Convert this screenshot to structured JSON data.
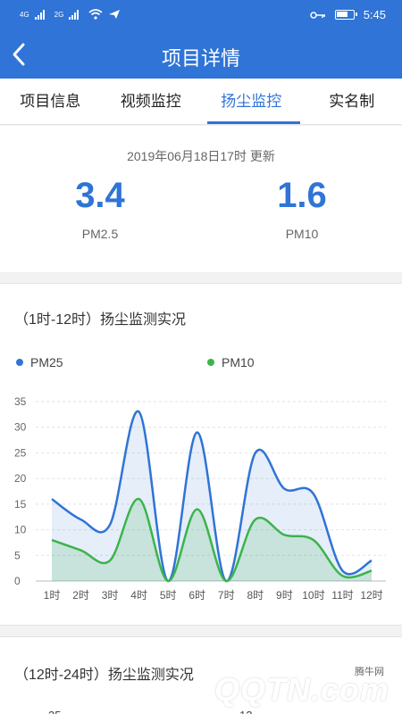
{
  "statusbar": {
    "left": [
      "4G",
      "2G"
    ],
    "time": "5:45"
  },
  "appbar": {
    "title": "项目详情"
  },
  "tabs": [
    {
      "label": "项目信息",
      "active": false
    },
    {
      "label": "视频监控",
      "active": false
    },
    {
      "label": "扬尘监控",
      "active": true
    },
    {
      "label": "实名制",
      "active": false
    }
  ],
  "summary": {
    "updated": "2019年06月18日17时 更新",
    "pm25_value": "3.4",
    "pm25_label": "PM2.5",
    "pm10_value": "1.6",
    "pm10_label": "PM10"
  },
  "chart1": {
    "title": "（1时-12时）扬尘监测实况",
    "legend_pm25": "PM25",
    "legend_pm10": "PM10"
  },
  "chart2": {
    "title": "（12时-24时）扬尘监测实况",
    "peek_left": "35",
    "peek_right": "12"
  },
  "watermark": {
    "brand": "QQTN.com",
    "small": "腾牛网"
  },
  "colors": {
    "accent": "#2f74d6",
    "pm25": "#2f74d6",
    "pm10": "#3cb44b"
  },
  "chart_data": {
    "type": "area",
    "title": "（1时-12时）扬尘监测实况",
    "categories": [
      "1时",
      "2时",
      "3时",
      "4时",
      "5时",
      "6时",
      "7时",
      "8时",
      "9时",
      "10时",
      "11时",
      "12时"
    ],
    "ylim": [
      0,
      35
    ],
    "yticks": [
      0,
      5,
      10,
      15,
      20,
      25,
      30,
      35
    ],
    "grid": true,
    "legend": "top",
    "series": [
      {
        "name": "PM25",
        "values": [
          16,
          12,
          11,
          33,
          0,
          29,
          0,
          25,
          18,
          17,
          2,
          4
        ]
      },
      {
        "name": "PM10",
        "values": [
          8,
          6,
          4,
          16,
          0,
          14,
          0,
          12,
          9,
          8,
          1,
          2
        ]
      }
    ]
  }
}
